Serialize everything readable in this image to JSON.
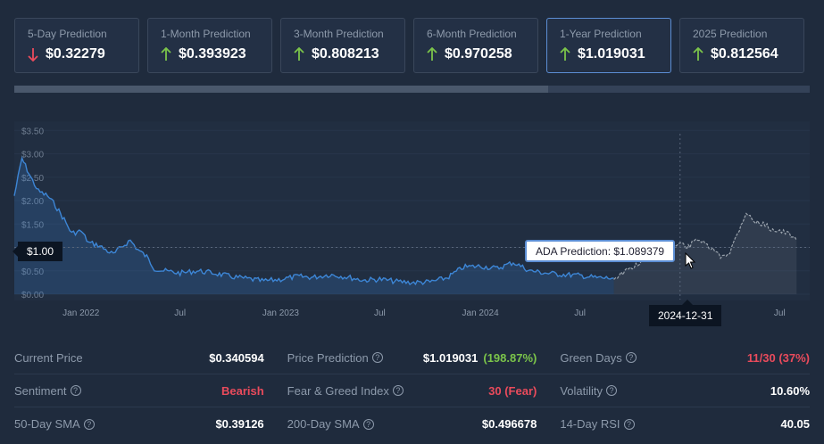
{
  "cards": [
    {
      "label": "5-Day Prediction",
      "value": "$0.32279",
      "direction": "down"
    },
    {
      "label": "1-Month Prediction",
      "value": "$0.393923",
      "direction": "up"
    },
    {
      "label": "3-Month Prediction",
      "value": "$0.808213",
      "direction": "up"
    },
    {
      "label": "6-Month Prediction",
      "value": "$0.970258",
      "direction": "up"
    },
    {
      "label": "1-Year Prediction",
      "value": "$1.019031",
      "direction": "up",
      "active": true
    },
    {
      "label": "2025 Prediction",
      "value": "$0.812564",
      "direction": "up"
    }
  ],
  "colors": {
    "up": "#7bc44a",
    "down": "#ea4b5c",
    "line": "#3d86d6",
    "forecast": "#9aa3ad"
  },
  "chart": {
    "y_ticks": [
      "$3.50",
      "$3.00",
      "$2.50",
      "$2.00",
      "$1.50",
      "$1.00",
      "$0.50",
      "$0.00"
    ],
    "x_ticks": [
      "Jan 2022",
      "Jul",
      "Jan 2023",
      "Jul",
      "Jan 2024",
      "Jul",
      "2024-12-31",
      "Jul"
    ],
    "price_flag": "$1.00",
    "tooltip": "ADA Prediction: $1.089379",
    "date_flag": "2024-12-31"
  },
  "chart_data": {
    "type": "line",
    "ylim": [
      0,
      3.5
    ],
    "series": [
      {
        "x": [
          "2021-09-01",
          "2021-09-15",
          "2021-10-01",
          "2021-10-15",
          "2021-11-01",
          "2021-11-15",
          "2021-12-01",
          "2021-12-15",
          "2022-01-01",
          "2022-01-15",
          "2022-02-01",
          "2022-02-15",
          "2022-03-01",
          "2022-03-15",
          "2022-04-01",
          "2022-04-15",
          "2022-05-01",
          "2022-05-15",
          "2022-06-01",
          "2022-07-01",
          "2022-08-01",
          "2022-09-01",
          "2022-10-01",
          "2022-11-01",
          "2022-12-01",
          "2023-01-01",
          "2023-02-01",
          "2023-03-01",
          "2023-04-01",
          "2023-05-01",
          "2023-06-01",
          "2023-07-01",
          "2023-08-01",
          "2023-09-01",
          "2023-10-01",
          "2023-11-01",
          "2023-12-01",
          "2024-01-01",
          "2024-02-01",
          "2024-03-01",
          "2024-04-01",
          "2024-05-01",
          "2024-06-01",
          "2024-07-01",
          "2024-08-01",
          "2024-09-01"
        ],
        "y": [
          2.1,
          2.9,
          2.5,
          2.2,
          2.1,
          1.9,
          1.6,
          1.3,
          1.35,
          1.1,
          1.05,
          0.95,
          0.85,
          1.0,
          1.15,
          0.95,
          0.8,
          0.55,
          0.5,
          0.45,
          0.5,
          0.45,
          0.38,
          0.33,
          0.28,
          0.32,
          0.38,
          0.36,
          0.42,
          0.37,
          0.3,
          0.32,
          0.27,
          0.25,
          0.26,
          0.35,
          0.58,
          0.6,
          0.55,
          0.68,
          0.5,
          0.45,
          0.42,
          0.4,
          0.35,
          0.34
        ]
      },
      {
        "name": "ADA Prediction",
        "x": [
          "2024-09-01",
          "2024-10-01",
          "2024-11-01",
          "2024-12-01",
          "2024-12-31",
          "2025-01-15",
          "2025-02-01",
          "2025-02-15",
          "2025-03-01",
          "2025-03-15",
          "2025-04-01",
          "2025-04-15",
          "2025-05-01",
          "2025-05-15",
          "2025-06-01",
          "2025-06-15",
          "2025-07-01",
          "2025-07-15",
          "2025-08-01"
        ],
        "y": [
          0.34,
          0.55,
          0.75,
          0.9,
          1.089379,
          1.0,
          1.2,
          1.05,
          0.95,
          0.8,
          0.9,
          1.3,
          1.75,
          1.55,
          1.5,
          1.4,
          1.35,
          1.3,
          1.15
        ]
      }
    ]
  },
  "stats": [
    [
      {
        "label": "Current Price",
        "value": "$0.340594",
        "help": false
      },
      {
        "label": "Price Prediction",
        "value": "$1.019031",
        "extra": "(198.87%)",
        "help": true
      },
      {
        "label": "Green Days",
        "value": "11/30 (37%)",
        "help": true,
        "color": "red"
      }
    ],
    [
      {
        "label": "Sentiment",
        "value": "Bearish",
        "help": true,
        "color": "red"
      },
      {
        "label": "Fear & Greed Index",
        "value": "30 (Fear)",
        "help": true,
        "color": "red"
      },
      {
        "label": "Volatility",
        "value": "10.60%",
        "help": true
      }
    ],
    [
      {
        "label": "50-Day SMA",
        "value": "$0.39126",
        "help": true
      },
      {
        "label": "200-Day SMA",
        "value": "$0.496678",
        "help": true
      },
      {
        "label": "14-Day RSI",
        "value": "40.05",
        "help": true
      }
    ]
  ]
}
